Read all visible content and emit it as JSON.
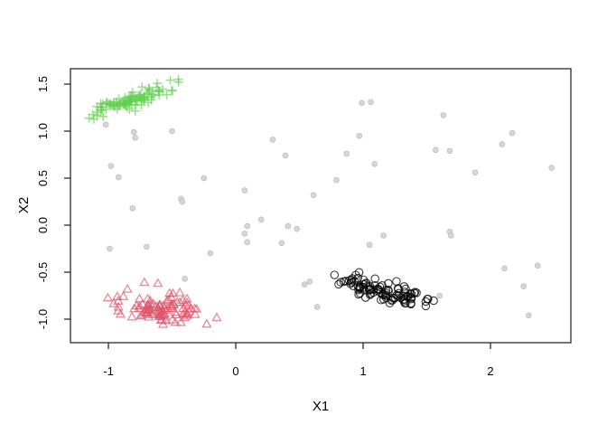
{
  "figure": {
    "background": "#ffffff",
    "title": ""
  },
  "chart_data": {
    "type": "scatter",
    "title": "",
    "xlabel": "X1",
    "ylabel": "X2",
    "xlim": [
      -1.298,
      2.631
    ],
    "ylim": [
      -1.25,
      1.664
    ],
    "x_ticks": [
      -1,
      0,
      1,
      2
    ],
    "x_tick_labels": [
      "-1",
      "0",
      "1",
      "2"
    ],
    "y_ticks": [
      -1.0,
      -0.5,
      0.0,
      0.5,
      1.0,
      1.5
    ],
    "y_tick_labels": [
      "-1.0",
      "-0.5",
      "0.0",
      "0.5",
      "1.0",
      "1.5"
    ],
    "grid": false,
    "legend": null,
    "box_color": "#1a1a1a",
    "series": [
      {
        "name": "cluster-green-plus",
        "marker": "plus",
        "color": "#61D04F",
        "opacity": 0.65,
        "count": 100,
        "center": [
          -0.815,
          1.335
        ],
        "sd_x": 0.16,
        "slope": 0.43,
        "sd_res": 0.042,
        "x_range": [
          -1.18,
          -0.45
        ],
        "y_range": [
          1.1,
          1.56
        ]
      },
      {
        "name": "cluster-red-triangle",
        "marker": "triangle-open",
        "color": "#DF536B",
        "opacity": 0.72,
        "count": 100,
        "center": [
          -0.575,
          -0.9
        ],
        "sd_x": 0.165,
        "slope": -0.05,
        "sd_res": 0.085,
        "x_range": [
          -1.01,
          -0.1
        ],
        "y_range": [
          -1.17,
          -0.6
        ]
      },
      {
        "name": "cluster-black-circle",
        "marker": "circle-open",
        "color": "#000000",
        "opacity": 0.78,
        "count": 100,
        "center": [
          1.16,
          -0.7
        ],
        "sd_x": 0.175,
        "slope": -0.32,
        "sd_res": 0.055,
        "x_range": [
          0.7,
          1.66
        ],
        "y_range": [
          -1.02,
          -0.46
        ]
      },
      {
        "name": "noise-gray-dots",
        "marker": "dot",
        "fill": "#d7d7d7",
        "stroke": "#bdbdbd",
        "points": [
          [
            -1.02,
            1.07
          ],
          [
            -0.8,
            0.99
          ],
          [
            -0.79,
            0.93
          ],
          [
            -0.5,
            1.0
          ],
          [
            0.29,
            0.91
          ],
          [
            0.39,
            0.74
          ],
          [
            -0.98,
            0.63
          ],
          [
            -0.92,
            0.51
          ],
          [
            -0.25,
            0.5
          ],
          [
            0.07,
            0.37
          ],
          [
            -0.43,
            0.28
          ],
          [
            -0.42,
            0.25
          ],
          [
            -0.81,
            0.18
          ],
          [
            0.99,
            1.3
          ],
          [
            1.06,
            1.31
          ],
          [
            1.63,
            1.17
          ],
          [
            0.97,
            0.95
          ],
          [
            0.87,
            0.76
          ],
          [
            1.09,
            0.65
          ],
          [
            1.57,
            0.8
          ],
          [
            1.68,
            0.79
          ],
          [
            2.09,
            0.86
          ],
          [
            2.17,
            0.98
          ],
          [
            1.88,
            0.56
          ],
          [
            2.48,
            0.61
          ],
          [
            0.79,
            0.48
          ],
          [
            0.61,
            0.32
          ],
          [
            -0.99,
            -0.25
          ],
          [
            -0.7,
            -0.23
          ],
          [
            -0.2,
            -0.3
          ],
          [
            -0.4,
            -0.57
          ],
          [
            0.09,
            -0.01
          ],
          [
            0.2,
            0.06
          ],
          [
            0.07,
            -0.09
          ],
          [
            0.09,
            -0.18
          ],
          [
            0.41,
            -0.01
          ],
          [
            0.48,
            -0.04
          ],
          [
            0.36,
            -0.19
          ],
          [
            0.54,
            -0.63
          ],
          [
            0.58,
            -0.6
          ],
          [
            0.64,
            -0.87
          ],
          [
            1.05,
            -0.21
          ],
          [
            1.16,
            -0.11
          ],
          [
            1.68,
            -0.07
          ],
          [
            1.69,
            -0.11
          ],
          [
            2.11,
            -0.46
          ],
          [
            2.37,
            -0.43
          ],
          [
            2.26,
            -0.65
          ],
          [
            2.3,
            -0.96
          ],
          [
            1.6,
            -0.75
          ]
        ]
      }
    ]
  }
}
